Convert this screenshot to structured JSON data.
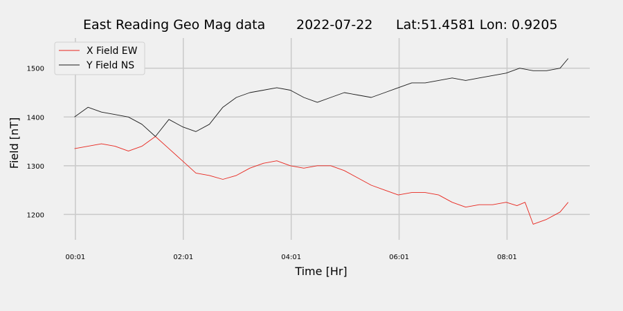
{
  "chart_data": {
    "type": "line",
    "title_parts": [
      "East Reading Geo Mag data",
      "2022-07-22",
      "Lat:51.4581  Lon: 0.9205"
    ],
    "xlabel": "Time  [Hr]",
    "ylabel": "Field  [nT]",
    "x_ticks": [
      {
        "value": 0.0167,
        "label": "00:01"
      },
      {
        "value": 2.0167,
        "label": "02:01"
      },
      {
        "value": 4.0167,
        "label": "04:01"
      },
      {
        "value": 6.0167,
        "label": "06:01"
      },
      {
        "value": 8.0167,
        "label": "08:01"
      }
    ],
    "y_ticks": [
      1200,
      1300,
      1400,
      1500
    ],
    "xlim": [
      -0.2,
      9.55
    ],
    "ylim": [
      1148,
      1562
    ],
    "grid": true,
    "legend_position": "top-left",
    "series": [
      {
        "name": "X Field EW",
        "color": "#e8241c",
        "x": [
          0.0,
          0.25,
          0.5,
          0.75,
          1.0,
          1.25,
          1.5,
          1.75,
          2.0,
          2.25,
          2.5,
          2.75,
          3.0,
          3.25,
          3.5,
          3.75,
          4.0,
          4.25,
          4.5,
          4.75,
          5.0,
          5.25,
          5.5,
          5.75,
          6.0,
          6.25,
          6.5,
          6.75,
          7.0,
          7.25,
          7.5,
          7.75,
          8.0,
          8.2,
          8.35,
          8.5,
          8.75,
          9.0,
          9.15
        ],
        "y": [
          1335,
          1340,
          1345,
          1340,
          1330,
          1340,
          1360,
          1335,
          1310,
          1285,
          1280,
          1272,
          1280,
          1295,
          1305,
          1310,
          1300,
          1295,
          1300,
          1300,
          1290,
          1275,
          1260,
          1250,
          1240,
          1245,
          1245,
          1240,
          1225,
          1215,
          1220,
          1220,
          1225,
          1218,
          1225,
          1180,
          1190,
          1205,
          1225
        ]
      },
      {
        "name": "Y Field NS",
        "color": "#1a1a1a",
        "x": [
          0.0,
          0.25,
          0.5,
          0.75,
          1.0,
          1.25,
          1.5,
          1.75,
          2.0,
          2.25,
          2.5,
          2.75,
          3.0,
          3.25,
          3.5,
          3.75,
          4.0,
          4.25,
          4.5,
          4.75,
          5.0,
          5.25,
          5.5,
          5.75,
          6.0,
          6.25,
          6.5,
          6.75,
          7.0,
          7.25,
          7.5,
          7.75,
          8.0,
          8.25,
          8.5,
          8.75,
          9.0,
          9.15
        ],
        "y": [
          1400,
          1420,
          1410,
          1405,
          1400,
          1385,
          1360,
          1395,
          1380,
          1370,
          1385,
          1420,
          1440,
          1450,
          1455,
          1460,
          1455,
          1440,
          1430,
          1440,
          1450,
          1445,
          1440,
          1450,
          1460,
          1470,
          1470,
          1475,
          1480,
          1475,
          1480,
          1485,
          1490,
          1500,
          1495,
          1495,
          1500,
          1520
        ]
      }
    ]
  }
}
